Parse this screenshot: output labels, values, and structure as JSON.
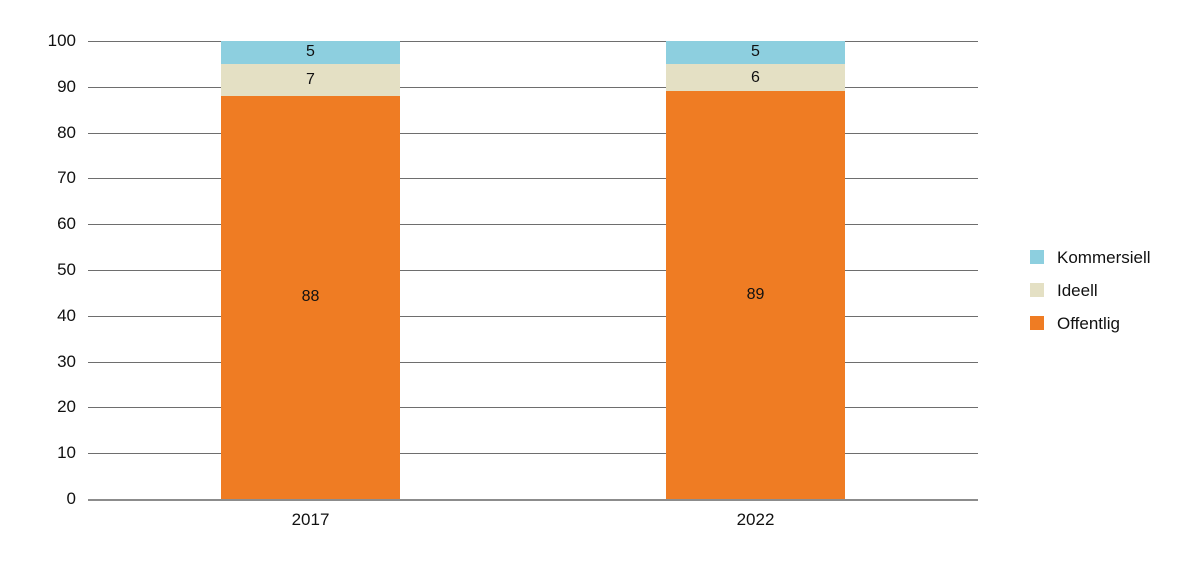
{
  "chart_data": {
    "type": "bar",
    "stacked": true,
    "title": "",
    "xlabel": "",
    "ylabel": "",
    "categories": [
      "2017",
      "2022"
    ],
    "series": [
      {
        "name": "Kommersiell",
        "color": "#8dcfdf",
        "values": [
          5,
          5
        ]
      },
      {
        "name": "Ideell",
        "color": "#e4e0c4",
        "values": [
          7,
          6
        ]
      },
      {
        "name": "Offentlig",
        "color": "#ef7c23",
        "values": [
          88,
          89
        ]
      }
    ],
    "stack_order_bottom_to_top": [
      "Offentlig",
      "Ideell",
      "Kommersiell"
    ],
    "segment_labels_visible": true,
    "ylim": [
      0,
      100
    ],
    "ytick_step": 10,
    "ytick_labels": [
      "0",
      "10",
      "20",
      "30",
      "40",
      "50",
      "60",
      "70",
      "80",
      "90",
      "100"
    ],
    "grid": true,
    "legend_position": "right",
    "colors": {
      "gridline": "#6e6e6e",
      "axis_line": "#8c8c8c",
      "text": "#111111",
      "background": "#ffffff"
    }
  }
}
